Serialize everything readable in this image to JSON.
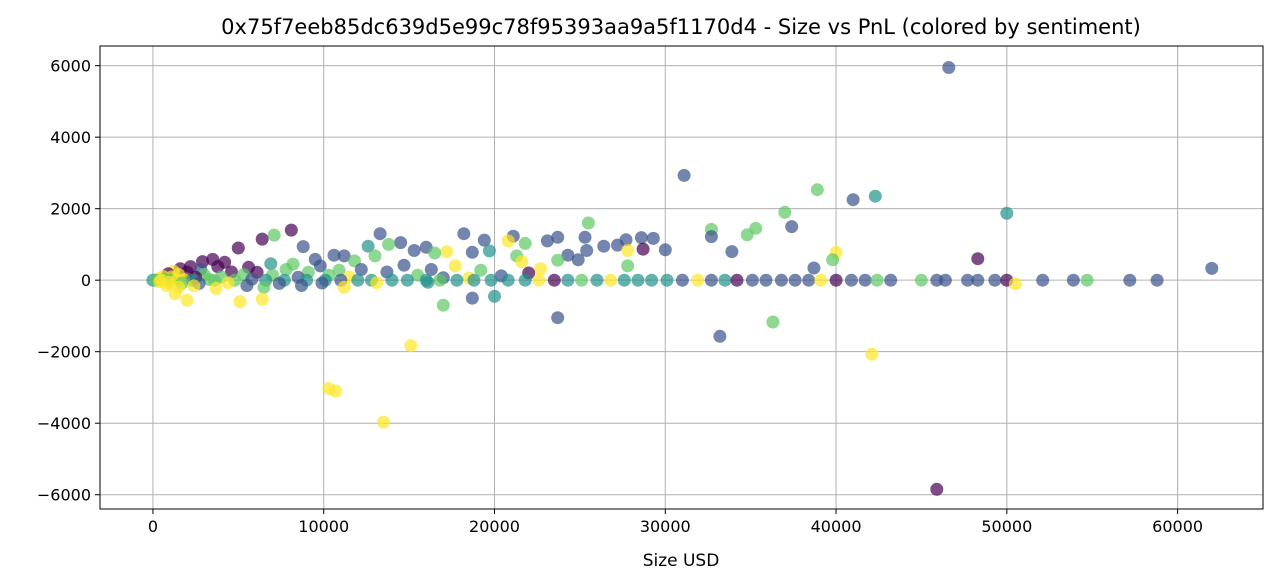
{
  "chart_data": {
    "type": "scatter",
    "title": "0x75f7eeb85dc639d5e99c78f95393aa9a5f1170d4 - Size vs PnL (colored by sentiment)",
    "xlabel": "Size USD",
    "ylabel": "",
    "xlim": [
      -3100,
      65000
    ],
    "ylim": [
      -6400,
      6550
    ],
    "xticks": [
      0,
      10000,
      20000,
      30000,
      40000,
      50000,
      60000
    ],
    "yticks": [
      -6000,
      -4000,
      -2000,
      0,
      2000,
      4000,
      6000
    ],
    "xtick_labels": [
      "0",
      "10000",
      "20000",
      "30000",
      "40000",
      "50000",
      "60000"
    ],
    "ytick_labels": [
      "−6000",
      "−4000",
      "−2000",
      "0",
      "2000",
      "4000",
      "6000"
    ],
    "grid": true,
    "legend": "none",
    "marker_opacity": 0.7,
    "colormap": "viridis",
    "sentiment_colors": {
      "extreme_fear": "#440154",
      "fear": "#3b528b",
      "neutral": "#21918c",
      "greed": "#5ec962",
      "extreme_greed": "#fde725"
    },
    "points": [
      {
        "x": 46600,
        "y": 5950,
        "c": "fear"
      },
      {
        "x": 45900,
        "y": -5850,
        "c": "extreme_fear"
      },
      {
        "x": 31100,
        "y": 2930,
        "c": "fear"
      },
      {
        "x": 38900,
        "y": 2530,
        "c": "greed"
      },
      {
        "x": 42300,
        "y": 2350,
        "c": "neutral"
      },
      {
        "x": 41000,
        "y": 2250,
        "c": "fear"
      },
      {
        "x": 37000,
        "y": 1900,
        "c": "greed"
      },
      {
        "x": 50000,
        "y": 1870,
        "c": "neutral"
      },
      {
        "x": 25500,
        "y": 1600,
        "c": "greed"
      },
      {
        "x": 37400,
        "y": 1500,
        "c": "fear"
      },
      {
        "x": 35300,
        "y": 1450,
        "c": "greed"
      },
      {
        "x": 32700,
        "y": 1420,
        "c": "greed"
      },
      {
        "x": 8100,
        "y": 1400,
        "c": "extreme_fear"
      },
      {
        "x": 13300,
        "y": 1300,
        "c": "fear"
      },
      {
        "x": 18200,
        "y": 1300,
        "c": "fear"
      },
      {
        "x": 34800,
        "y": 1270,
        "c": "greed"
      },
      {
        "x": 7100,
        "y": 1260,
        "c": "greed"
      },
      {
        "x": 32700,
        "y": 1220,
        "c": "fear"
      },
      {
        "x": 21100,
        "y": 1230,
        "c": "fear"
      },
      {
        "x": 23700,
        "y": 1200,
        "c": "fear"
      },
      {
        "x": 25300,
        "y": 1200,
        "c": "fear"
      },
      {
        "x": 28600,
        "y": 1190,
        "c": "fear"
      },
      {
        "x": 29300,
        "y": 1170,
        "c": "fear"
      },
      {
        "x": 6400,
        "y": 1150,
        "c": "extreme_fear"
      },
      {
        "x": 27700,
        "y": 1130,
        "c": "fear"
      },
      {
        "x": 19400,
        "y": 1120,
        "c": "fear"
      },
      {
        "x": 20800,
        "y": 1100,
        "c": "extreme_greed"
      },
      {
        "x": 23100,
        "y": 1100,
        "c": "fear"
      },
      {
        "x": 14500,
        "y": 1050,
        "c": "fear"
      },
      {
        "x": 21800,
        "y": 1030,
        "c": "greed"
      },
      {
        "x": 13800,
        "y": 1000,
        "c": "greed"
      },
      {
        "x": 27200,
        "y": 980,
        "c": "fear"
      },
      {
        "x": 26400,
        "y": 950,
        "c": "fear"
      },
      {
        "x": 12600,
        "y": 950,
        "c": "neutral"
      },
      {
        "x": 8800,
        "y": 940,
        "c": "fear"
      },
      {
        "x": 16000,
        "y": 920,
        "c": "fear"
      },
      {
        "x": 5000,
        "y": 900,
        "c": "extreme_fear"
      },
      {
        "x": 28700,
        "y": 870,
        "c": "extreme_fear"
      },
      {
        "x": 30000,
        "y": 850,
        "c": "fear"
      },
      {
        "x": 25400,
        "y": 830,
        "c": "fear"
      },
      {
        "x": 27800,
        "y": 830,
        "c": "extreme_greed"
      },
      {
        "x": 19700,
        "y": 820,
        "c": "neutral"
      },
      {
        "x": 15300,
        "y": 830,
        "c": "fear"
      },
      {
        "x": 17200,
        "y": 800,
        "c": "extreme_greed"
      },
      {
        "x": 33900,
        "y": 800,
        "c": "fear"
      },
      {
        "x": 18700,
        "y": 780,
        "c": "fear"
      },
      {
        "x": 40000,
        "y": 780,
        "c": "extreme_greed"
      },
      {
        "x": 16500,
        "y": 760,
        "c": "greed"
      },
      {
        "x": 10600,
        "y": 700,
        "c": "fear"
      },
      {
        "x": 11200,
        "y": 680,
        "c": "fear"
      },
      {
        "x": 24300,
        "y": 700,
        "c": "fear"
      },
      {
        "x": 21300,
        "y": 680,
        "c": "greed"
      },
      {
        "x": 13000,
        "y": 680,
        "c": "greed"
      },
      {
        "x": 48300,
        "y": 600,
        "c": "extreme_fear"
      },
      {
        "x": 9500,
        "y": 580,
        "c": "fear"
      },
      {
        "x": 3500,
        "y": 580,
        "c": "extreme_fear"
      },
      {
        "x": 24900,
        "y": 570,
        "c": "fear"
      },
      {
        "x": 39800,
        "y": 570,
        "c": "greed"
      },
      {
        "x": 21600,
        "y": 520,
        "c": "extreme_greed"
      },
      {
        "x": 23700,
        "y": 560,
        "c": "greed"
      },
      {
        "x": 11800,
        "y": 540,
        "c": "greed"
      },
      {
        "x": 2900,
        "y": 520,
        "c": "extreme_fear"
      },
      {
        "x": 4200,
        "y": 500,
        "c": "extreme_fear"
      },
      {
        "x": 6900,
        "y": 460,
        "c": "neutral"
      },
      {
        "x": 8200,
        "y": 450,
        "c": "greed"
      },
      {
        "x": 9800,
        "y": 400,
        "c": "fear"
      },
      {
        "x": 14700,
        "y": 420,
        "c": "fear"
      },
      {
        "x": 17700,
        "y": 400,
        "c": "extreme_greed"
      },
      {
        "x": 27800,
        "y": 400,
        "c": "greed"
      },
      {
        "x": 38700,
        "y": 340,
        "c": "fear"
      },
      {
        "x": 62000,
        "y": 330,
        "c": "fear"
      },
      {
        "x": 2200,
        "y": 380,
        "c": "extreme_fear"
      },
      {
        "x": 3800,
        "y": 380,
        "c": "extreme_fear"
      },
      {
        "x": 5600,
        "y": 360,
        "c": "extreme_fear"
      },
      {
        "x": 1600,
        "y": 320,
        "c": "extreme_fear"
      },
      {
        "x": 2800,
        "y": 300,
        "c": "fear"
      },
      {
        "x": 7800,
        "y": 300,
        "c": "greed"
      },
      {
        "x": 10900,
        "y": 280,
        "c": "greed"
      },
      {
        "x": 12200,
        "y": 300,
        "c": "fear"
      },
      {
        "x": 16300,
        "y": 300,
        "c": "fear"
      },
      {
        "x": 19200,
        "y": 280,
        "c": "greed"
      },
      {
        "x": 22700,
        "y": 320,
        "c": "extreme_greed"
      },
      {
        "x": 1200,
        "y": 250,
        "c": "extreme_greed"
      },
      {
        "x": 2000,
        "y": 230,
        "c": "extreme_fear"
      },
      {
        "x": 4600,
        "y": 230,
        "c": "extreme_fear"
      },
      {
        "x": 6100,
        "y": 220,
        "c": "extreme_fear"
      },
      {
        "x": 9100,
        "y": 220,
        "c": "greed"
      },
      {
        "x": 13700,
        "y": 230,
        "c": "fear"
      },
      {
        "x": 22000,
        "y": 200,
        "c": "extreme_fear"
      },
      {
        "x": 900,
        "y": 180,
        "c": "extreme_fear"
      },
      {
        "x": 1500,
        "y": 160,
        "c": "extreme_greed"
      },
      {
        "x": 3000,
        "y": 150,
        "c": "greed"
      },
      {
        "x": 5300,
        "y": 150,
        "c": "greed"
      },
      {
        "x": 7000,
        "y": 140,
        "c": "greed"
      },
      {
        "x": 10300,
        "y": 140,
        "c": "greed"
      },
      {
        "x": 15500,
        "y": 140,
        "c": "greed"
      },
      {
        "x": 20400,
        "y": 120,
        "c": "fear"
      },
      {
        "x": 600,
        "y": 100,
        "c": "extreme_greed"
      },
      {
        "x": 1100,
        "y": 90,
        "c": "extreme_greed"
      },
      {
        "x": 2500,
        "y": 80,
        "c": "extreme_fear"
      },
      {
        "x": 4000,
        "y": 90,
        "c": "greed"
      },
      {
        "x": 8500,
        "y": 80,
        "c": "fear"
      },
      {
        "x": 11500,
        "y": 90,
        "c": "extreme_greed"
      },
      {
        "x": 17000,
        "y": 70,
        "c": "fear"
      },
      {
        "x": 18500,
        "y": 60,
        "c": "extreme_greed"
      },
      {
        "x": 300,
        "y": 40,
        "c": "extreme_greed"
      },
      {
        "x": 700,
        "y": 30,
        "c": "greed"
      },
      {
        "x": 1800,
        "y": 20,
        "c": "extreme_greed"
      },
      {
        "x": 3300,
        "y": 20,
        "c": "greed"
      },
      {
        "x": 5800,
        "y": 30,
        "c": "fear"
      },
      {
        "x": 0,
        "y": 0,
        "c": "neutral"
      },
      {
        "x": 200,
        "y": 0,
        "c": "greed"
      },
      {
        "x": 500,
        "y": 0,
        "c": "extreme_greed"
      },
      {
        "x": 1000,
        "y": 0,
        "c": "greed"
      },
      {
        "x": 1400,
        "y": 0,
        "c": "extreme_greed"
      },
      {
        "x": 2300,
        "y": 0,
        "c": "neutral"
      },
      {
        "x": 3600,
        "y": 0,
        "c": "greed"
      },
      {
        "x": 4800,
        "y": 0,
        "c": "greed"
      },
      {
        "x": 6600,
        "y": 0,
        "c": "neutral"
      },
      {
        "x": 7700,
        "y": 0,
        "c": "neutral"
      },
      {
        "x": 9000,
        "y": 0,
        "c": "neutral"
      },
      {
        "x": 10100,
        "y": 0,
        "c": "neutral"
      },
      {
        "x": 11000,
        "y": 0,
        "c": "fear"
      },
      {
        "x": 12000,
        "y": 0,
        "c": "neutral"
      },
      {
        "x": 12800,
        "y": 0,
        "c": "neutral"
      },
      {
        "x": 14000,
        "y": 0,
        "c": "neutral"
      },
      {
        "x": 14900,
        "y": 0,
        "c": "neutral"
      },
      {
        "x": 16000,
        "y": 0,
        "c": "neutral"
      },
      {
        "x": 16800,
        "y": 0,
        "c": "greed"
      },
      {
        "x": 17800,
        "y": 0,
        "c": "neutral"
      },
      {
        "x": 18800,
        "y": 0,
        "c": "neutral"
      },
      {
        "x": 19800,
        "y": 0,
        "c": "neutral"
      },
      {
        "x": 20800,
        "y": 0,
        "c": "neutral"
      },
      {
        "x": 21800,
        "y": 0,
        "c": "neutral"
      },
      {
        "x": 22600,
        "y": 0,
        "c": "extreme_greed"
      },
      {
        "x": 23500,
        "y": 0,
        "c": "extreme_fear"
      },
      {
        "x": 24300,
        "y": 0,
        "c": "neutral"
      },
      {
        "x": 25100,
        "y": 0,
        "c": "greed"
      },
      {
        "x": 26000,
        "y": 0,
        "c": "neutral"
      },
      {
        "x": 26800,
        "y": 0,
        "c": "extreme_greed"
      },
      {
        "x": 27600,
        "y": 0,
        "c": "neutral"
      },
      {
        "x": 28400,
        "y": 0,
        "c": "neutral"
      },
      {
        "x": 29200,
        "y": 0,
        "c": "neutral"
      },
      {
        "x": 30100,
        "y": 0,
        "c": "neutral"
      },
      {
        "x": 31000,
        "y": 0,
        "c": "fear"
      },
      {
        "x": 31900,
        "y": 0,
        "c": "extreme_greed"
      },
      {
        "x": 32700,
        "y": 0,
        "c": "fear"
      },
      {
        "x": 33500,
        "y": 0,
        "c": "neutral"
      },
      {
        "x": 34200,
        "y": 0,
        "c": "extreme_fear"
      },
      {
        "x": 35100,
        "y": 0,
        "c": "fear"
      },
      {
        "x": 35900,
        "y": 0,
        "c": "fear"
      },
      {
        "x": 36800,
        "y": 0,
        "c": "fear"
      },
      {
        "x": 37600,
        "y": 0,
        "c": "fear"
      },
      {
        "x": 38400,
        "y": 0,
        "c": "fear"
      },
      {
        "x": 39100,
        "y": 0,
        "c": "extreme_greed"
      },
      {
        "x": 40000,
        "y": 0,
        "c": "extreme_fear"
      },
      {
        "x": 40900,
        "y": 0,
        "c": "fear"
      },
      {
        "x": 41700,
        "y": 0,
        "c": "fear"
      },
      {
        "x": 42400,
        "y": 0,
        "c": "greed"
      },
      {
        "x": 43200,
        "y": 0,
        "c": "fear"
      },
      {
        "x": 45000,
        "y": 0,
        "c": "greed"
      },
      {
        "x": 45900,
        "y": 0,
        "c": "fear"
      },
      {
        "x": 46400,
        "y": 0,
        "c": "fear"
      },
      {
        "x": 47700,
        "y": 0,
        "c": "fear"
      },
      {
        "x": 48300,
        "y": 0,
        "c": "fear"
      },
      {
        "x": 49300,
        "y": 0,
        "c": "fear"
      },
      {
        "x": 50000,
        "y": 0,
        "c": "extreme_fear"
      },
      {
        "x": 50500,
        "y": -100,
        "c": "extreme_greed"
      },
      {
        "x": 52100,
        "y": 0,
        "c": "fear"
      },
      {
        "x": 53900,
        "y": 0,
        "c": "fear"
      },
      {
        "x": 54700,
        "y": 0,
        "c": "greed"
      },
      {
        "x": 57200,
        "y": 0,
        "c": "fear"
      },
      {
        "x": 58800,
        "y": 0,
        "c": "fear"
      },
      {
        "x": 400,
        "y": -40,
        "c": "extreme_greed"
      },
      {
        "x": 900,
        "y": -60,
        "c": "extreme_greed"
      },
      {
        "x": 1700,
        "y": -80,
        "c": "greed"
      },
      {
        "x": 2700,
        "y": -90,
        "c": "fear"
      },
      {
        "x": 4400,
        "y": -70,
        "c": "extreme_greed"
      },
      {
        "x": 7400,
        "y": -90,
        "c": "fear"
      },
      {
        "x": 9900,
        "y": -80,
        "c": "fear"
      },
      {
        "x": 13100,
        "y": -70,
        "c": "extreme_greed"
      },
      {
        "x": 16100,
        "y": -60,
        "c": "neutral"
      },
      {
        "x": 800,
        "y": -150,
        "c": "extreme_greed"
      },
      {
        "x": 1500,
        "y": -200,
        "c": "extreme_greed"
      },
      {
        "x": 2400,
        "y": -160,
        "c": "extreme_greed"
      },
      {
        "x": 3700,
        "y": -230,
        "c": "extreme_greed"
      },
      {
        "x": 5500,
        "y": -150,
        "c": "fear"
      },
      {
        "x": 6500,
        "y": -200,
        "c": "greed"
      },
      {
        "x": 8700,
        "y": -150,
        "c": "fear"
      },
      {
        "x": 11200,
        "y": -200,
        "c": "extreme_greed"
      },
      {
        "x": 1300,
        "y": -380,
        "c": "extreme_greed"
      },
      {
        "x": 2000,
        "y": -560,
        "c": "extreme_greed"
      },
      {
        "x": 5100,
        "y": -600,
        "c": "extreme_greed"
      },
      {
        "x": 6400,
        "y": -530,
        "c": "extreme_greed"
      },
      {
        "x": 18700,
        "y": -500,
        "c": "fear"
      },
      {
        "x": 20000,
        "y": -450,
        "c": "neutral"
      },
      {
        "x": 17000,
        "y": -700,
        "c": "greed"
      },
      {
        "x": 23700,
        "y": -1050,
        "c": "fear"
      },
      {
        "x": 36300,
        "y": -1170,
        "c": "greed"
      },
      {
        "x": 33200,
        "y": -1570,
        "c": "fear"
      },
      {
        "x": 15100,
        "y": -1830,
        "c": "extreme_greed"
      },
      {
        "x": 42100,
        "y": -2070,
        "c": "extreme_greed"
      },
      {
        "x": 10300,
        "y": -3030,
        "c": "extreme_greed"
      },
      {
        "x": 10700,
        "y": -3100,
        "c": "extreme_greed"
      },
      {
        "x": 13500,
        "y": -3970,
        "c": "extreme_greed"
      }
    ]
  }
}
